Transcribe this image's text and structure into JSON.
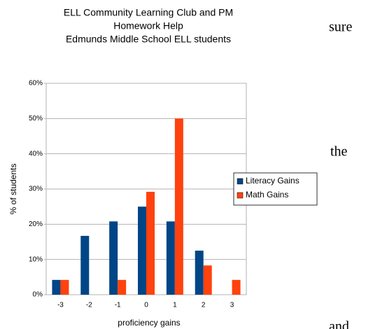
{
  "chart_data": {
    "type": "bar",
    "title": [
      "ELL Community Learning Club and PM",
      "Homework Help",
      "Edmunds Middle School ELL students"
    ],
    "xlabel": "proficiency gains",
    "ylabel": "% of students",
    "categories": [
      "-3",
      "-2",
      "-1",
      "0",
      "1",
      "2",
      "3"
    ],
    "series": [
      {
        "name": "Literacy Gains",
        "color": "#004586",
        "values": [
          4.2,
          16.7,
          20.8,
          25,
          20.8,
          12.5,
          0
        ]
      },
      {
        "name": "Math Gains",
        "color": "#ff420e",
        "values": [
          4.2,
          0,
          4.2,
          29.2,
          50,
          8.3,
          4.2
        ]
      }
    ],
    "ylim": [
      0,
      60
    ],
    "yticks": [
      {
        "value": 0,
        "label": "0%"
      },
      {
        "value": 10,
        "label": "10%"
      },
      {
        "value": 20,
        "label": "20%"
      },
      {
        "value": 30,
        "label": "30%"
      },
      {
        "value": 40,
        "label": "40%"
      },
      {
        "value": 50,
        "label": "50%"
      },
      {
        "value": 60,
        "label": "60%"
      }
    ],
    "grid": true,
    "legend": "right"
  },
  "side_text": [
    "sure",
    "the",
    "and"
  ]
}
